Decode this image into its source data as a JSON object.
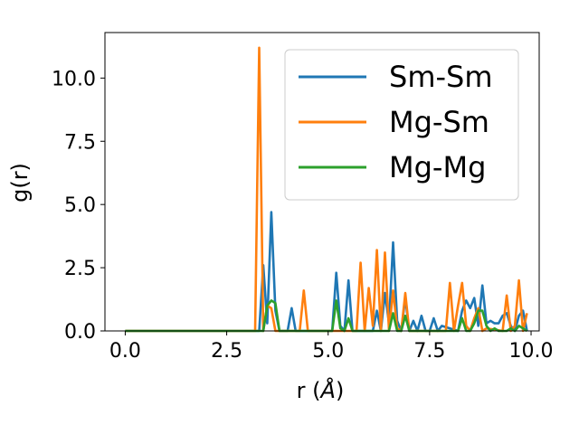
{
  "chart_data": {
    "type": "line",
    "xlabel_main": "r (",
    "xlabel_unit": "Å",
    "xlabel_end": ")",
    "ylabel": "g(r)",
    "xlim": [
      -0.5,
      10.2
    ],
    "ylim": [
      0,
      11.8
    ],
    "xticks": [
      0.0,
      2.5,
      5.0,
      7.5,
      10.0
    ],
    "xtick_labels": [
      "0.0",
      "2.5",
      "5.0",
      "7.5",
      "10.0"
    ],
    "yticks": [
      0.0,
      2.5,
      5.0,
      7.5,
      10.0
    ],
    "ytick_labels": [
      "0.0",
      "2.5",
      "5.0",
      "7.5",
      "10.0"
    ],
    "grid": false,
    "legend_position": "upper-right",
    "series": [
      {
        "name": "Sm-Sm",
        "color": "#1f77b4",
        "x": [
          0.0,
          3.1,
          3.3,
          3.4,
          3.5,
          3.6,
          3.7,
          3.8,
          4.0,
          4.1,
          4.2,
          5.1,
          5.2,
          5.3,
          5.4,
          5.5,
          5.6,
          6.1,
          6.2,
          6.3,
          6.4,
          6.5,
          6.6,
          6.7,
          6.8,
          6.9,
          7.0,
          7.1,
          7.2,
          7.3,
          7.4,
          7.5,
          7.6,
          7.7,
          7.8,
          8.2,
          8.3,
          8.4,
          8.5,
          8.6,
          8.7,
          8.8,
          8.9,
          9.0,
          9.1,
          9.2,
          9.3,
          9.4,
          9.5,
          9.6,
          9.7,
          9.8,
          9.9
        ],
        "y": [
          0,
          0,
          0,
          2.6,
          0.3,
          4.7,
          0.8,
          0,
          0,
          0.9,
          0,
          0,
          2.3,
          0.2,
          0,
          2.0,
          0,
          0,
          0.8,
          0,
          1.5,
          0.3,
          3.5,
          0.4,
          0,
          1.3,
          0,
          0.4,
          0,
          0.6,
          0,
          0,
          0.5,
          0,
          0.2,
          0,
          0.8,
          1.2,
          0.9,
          1.3,
          0.2,
          1.8,
          0.3,
          0.4,
          0.3,
          0.3,
          0.6,
          0.7,
          0.2,
          0,
          0.6,
          0.8,
          0
        ]
      },
      {
        "name": "Mg-Sm",
        "color": "#ff7f0e",
        "x": [
          0.0,
          3.1,
          3.2,
          3.3,
          3.4,
          3.5,
          3.6,
          3.7,
          4.3,
          4.4,
          4.5,
          5.7,
          5.8,
          5.9,
          6.0,
          6.1,
          6.2,
          6.3,
          6.4,
          6.5,
          6.6,
          6.7,
          6.8,
          6.9,
          7.0,
          7.9,
          8.0,
          8.1,
          8.2,
          8.3,
          8.4,
          8.5,
          8.6,
          8.7,
          8.8,
          8.9,
          9.3,
          9.4,
          9.5,
          9.6,
          9.7,
          9.8,
          9.9
        ],
        "y": [
          0,
          0,
          0,
          11.2,
          0,
          1.0,
          0.9,
          0,
          0,
          1.6,
          0,
          0,
          2.7,
          0,
          1.7,
          0.2,
          3.2,
          0,
          3.1,
          0,
          1.6,
          0.1,
          0,
          1.5,
          0,
          0,
          1.9,
          0,
          1.0,
          1.9,
          0.2,
          0,
          0.5,
          0.9,
          0,
          0.1,
          0,
          1.4,
          0,
          0.2,
          2.0,
          0,
          0.7
        ]
      },
      {
        "name": "Mg-Mg",
        "color": "#2ca02c",
        "x": [
          0.0,
          3.2,
          3.3,
          3.4,
          3.5,
          3.6,
          3.7,
          3.8,
          5.1,
          5.2,
          5.3,
          5.4,
          5.5,
          5.6,
          6.5,
          6.6,
          6.7,
          6.8,
          6.9,
          7.0,
          7.1,
          8.2,
          8.3,
          8.4,
          8.5,
          8.6,
          8.7,
          8.8,
          8.9,
          9.0,
          9.1,
          9.2,
          9.3,
          9.4,
          9.5,
          9.6,
          9.7,
          9.8,
          9.9
        ],
        "y": [
          0,
          0,
          0,
          0,
          1.0,
          1.2,
          1.1,
          0,
          0,
          1.2,
          0.1,
          0,
          0.5,
          0,
          0,
          0.7,
          0,
          0,
          0.6,
          0,
          0,
          0,
          0.5,
          0,
          0,
          0.3,
          0.8,
          0.8,
          0.2,
          0,
          0.1,
          0,
          0,
          0,
          0.1,
          0,
          0.2,
          0.1,
          0
        ]
      }
    ]
  }
}
